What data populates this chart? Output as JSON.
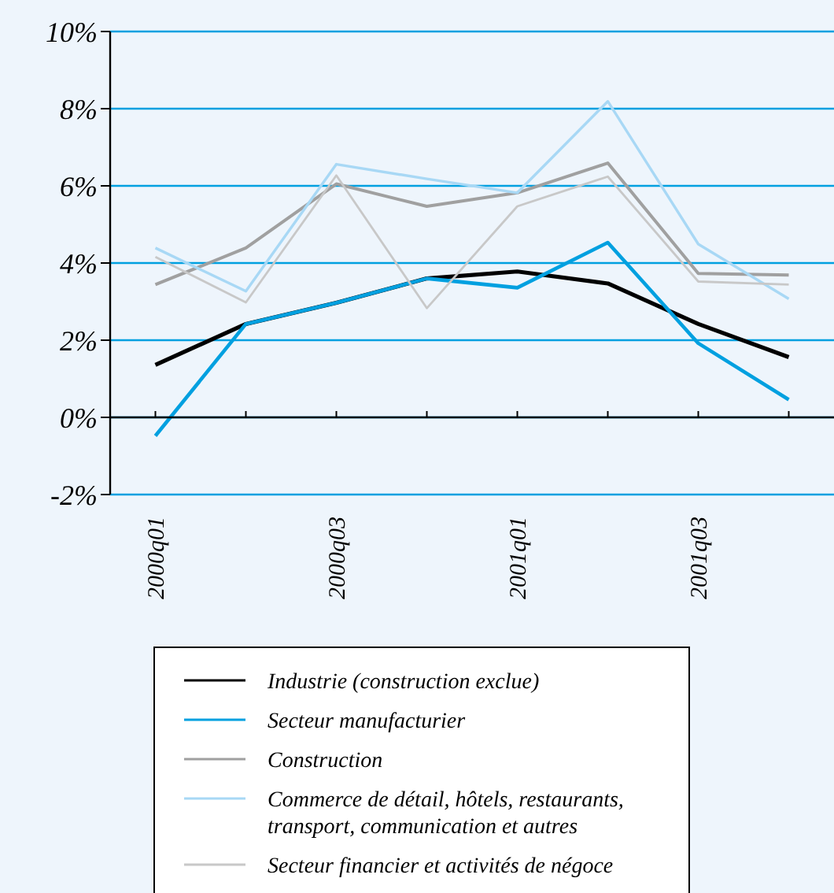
{
  "chart_data": {
    "type": "line",
    "categories": [
      "2000q01",
      null,
      "2000q03",
      null,
      "2001q01",
      null,
      "2001q03",
      null
    ],
    "ylim": [
      -2,
      10
    ],
    "yticks": [
      {
        "value": -2,
        "label": "-2%"
      },
      {
        "value": 0,
        "label": "0%"
      },
      {
        "value": 2,
        "label": "2%"
      },
      {
        "value": 4,
        "label": "4%"
      },
      {
        "value": 6,
        "label": "6%"
      },
      {
        "value": 8,
        "label": "8%"
      },
      {
        "value": 10,
        "label": "10%"
      }
    ],
    "grid": "y",
    "legend": "bottom",
    "marker": "none",
    "line_style": "solid",
    "series": [
      {
        "name": "Industrie (construction exclue)",
        "color": "#000000",
        "values": [
          1.36,
          2.42,
          2.97,
          3.6,
          3.78,
          3.47,
          2.42,
          1.56
        ]
      },
      {
        "name": "Secteur manufacturier",
        "color": "#00a0e0",
        "values": [
          -0.48,
          2.42,
          2.97,
          3.6,
          3.36,
          4.53,
          1.92,
          0.46
        ]
      },
      {
        "name": "Construction",
        "color": "#a0a0a0",
        "values": [
          3.44,
          4.39,
          6.05,
          5.47,
          5.82,
          6.59,
          3.73,
          3.69
        ]
      },
      {
        "name": "Commerce de détail, hôtels, restaurants, transport, communication et autres",
        "color": "#a8d8f5",
        "values": [
          4.39,
          3.27,
          6.56,
          6.18,
          5.82,
          8.19,
          4.49,
          3.07
        ]
      },
      {
        "name": "Secteur financier et activités de négoce",
        "color": "#c8c8c8",
        "values": [
          4.16,
          2.98,
          6.27,
          2.83,
          5.47,
          6.24,
          3.52,
          3.44
        ]
      }
    ]
  }
}
